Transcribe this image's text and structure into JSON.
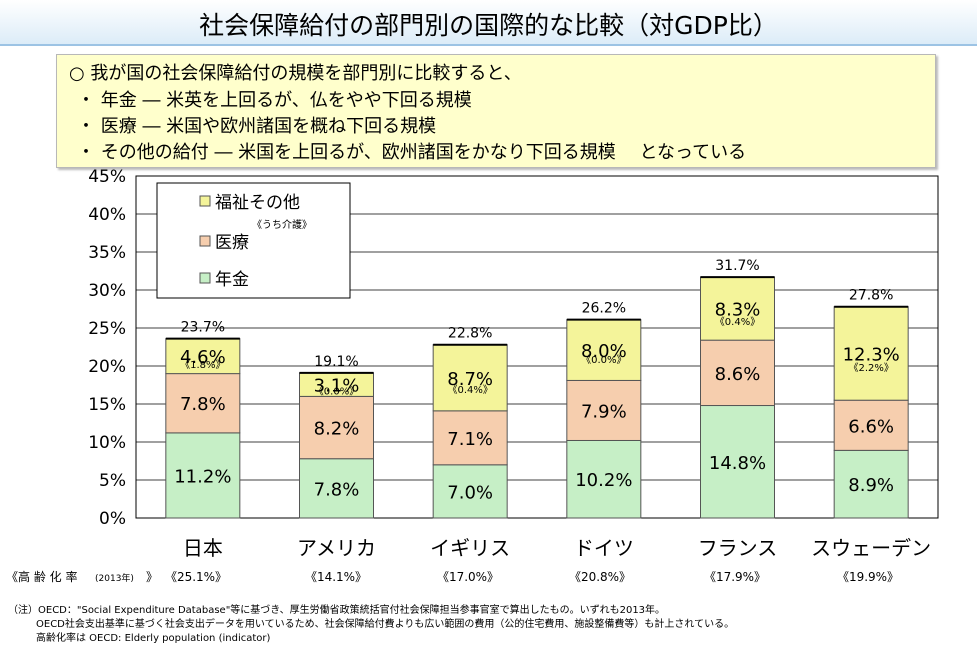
{
  "title": "社会保障給付の部門別の国際的な比較（対GDP比）",
  "summary": [
    "○ 我が国の社会保障給付の規模を部門別に比較すると、",
    "・ 年金 ― 米英を上回るが、仏をやや下回る規模",
    "・ 医療 ― 米国や欧州諸国を概ね下回る規模",
    "・ その他の給付 ― 米国を上回るが、欧州諸国をかなり下回る規模　 となっている"
  ],
  "chart_data": {
    "type": "bar",
    "stacked": true,
    "categories": [
      "日本",
      "アメリカ",
      "イギリス",
      "ドイツ",
      "フランス",
      "スウェーデン"
    ],
    "series": [
      {
        "name": "年金",
        "values": [
          11.2,
          7.8,
          7.0,
          10.2,
          14.8,
          8.9
        ],
        "labels": [
          "11.2%",
          "7.8%",
          "7.0%",
          "10.2%",
          "14.8%",
          "8.9%"
        ],
        "color": "#c6efc6"
      },
      {
        "name": "医療",
        "values": [
          7.8,
          8.2,
          7.1,
          7.9,
          8.6,
          6.6
        ],
        "labels": [
          "7.8%",
          "8.2%",
          "7.1%",
          "7.9%",
          "8.6%",
          "6.6%"
        ],
        "color": "#f6ceae"
      },
      {
        "name": "福祉その他",
        "values": [
          4.6,
          3.1,
          8.7,
          8.0,
          8.3,
          12.3
        ],
        "labels": [
          "4.6%",
          "3.1%",
          "8.7%",
          "8.0%",
          "8.3%",
          "12.3%"
        ],
        "color": "#f4f49a"
      }
    ],
    "care_values": [
      1.8,
      0.0,
      0.4,
      0.0,
      0.4,
      2.2
    ],
    "care_labels": [
      "《1.8%》",
      "《0.0%》",
      "《0.4%》",
      "《0.0%》",
      "《0.4%》",
      "《2.2%》"
    ],
    "care_legend": "《うち介護》",
    "totals": [
      "23.7%",
      "19.1%",
      "22.8%",
      "26.2%",
      "31.7%",
      "27.8%"
    ],
    "yticks": [
      "0%",
      "5%",
      "10%",
      "15%",
      "20%",
      "25%",
      "30%",
      "35%",
      "40%",
      "45%"
    ],
    "ylim": [
      0,
      45
    ],
    "grid": true,
    "legend_position": "top-left",
    "aging_label": "《高 齢 化 率",
    "aging_year": "(2013年)",
    "aging_close": "》",
    "aging_rates": [
      "《25.1%》",
      "《14.1%》",
      "《17.0%》",
      "《20.8%》",
      "《17.9%》",
      "《19.9%》"
    ]
  },
  "notes": [
    "（注）OECD：\"Social Expenditure Database\"等に基づき、厚生労働省政策統括官付社会保障担当参事官室で算出したもの。いずれも2013年。",
    "OECD社会支出基準に基づく社会支出データを用いているため、社会保障給付費よりも広い範囲の費用（公的住宅費用、施設整備費等）も計上されている。",
    "高齢化率は OECD: Elderly population (indicator)"
  ]
}
